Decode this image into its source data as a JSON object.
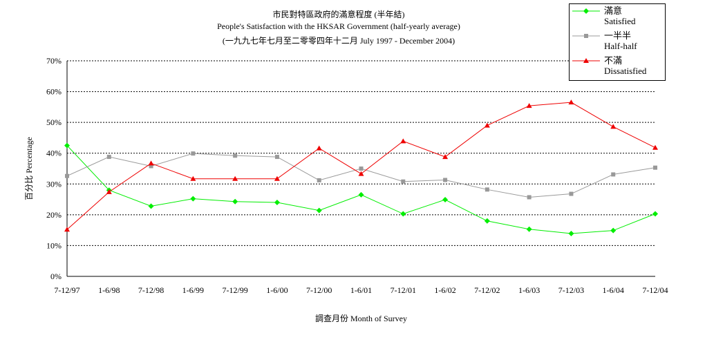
{
  "title": {
    "line1": "市民對特區政府的滿意程度 (半年結)",
    "line2": "People's Satisfaction with the HKSAR Government (half-yearly average)",
    "line3": "(一九九七年七月至二零零四年十二月 July 1997 - December 2004)"
  },
  "chart_data": {
    "type": "line",
    "categories": [
      "7-12/97",
      "1-6/98",
      "7-12/98",
      "1-6/99",
      "7-12/99",
      "1-6/00",
      "7-12/00",
      "1-6/01",
      "7-12/01",
      "1-6/02",
      "7-12/02",
      "1-6/03",
      "7-12/03",
      "1-6/04",
      "7-12/04"
    ],
    "series": [
      {
        "name_zh": "滿意",
        "name": "Satisfied",
        "color": "#00ee00",
        "marker": "diamond",
        "values": [
          42.5,
          28.0,
          22.8,
          25.2,
          24.3,
          24.0,
          21.4,
          26.5,
          20.3,
          24.9,
          18.0,
          15.3,
          13.9,
          14.9,
          20.3
        ]
      },
      {
        "name_zh": "一半半",
        "name": "Half-half",
        "color": "#999999",
        "marker": "square",
        "values": [
          32.6,
          38.8,
          35.8,
          39.9,
          39.2,
          38.8,
          31.2,
          35.0,
          30.8,
          31.3,
          28.2,
          25.7,
          26.8,
          33.1,
          35.3
        ]
      },
      {
        "name_zh": "不滿",
        "name": "Dissatisfied",
        "color": "#ee0000",
        "marker": "triangle",
        "values": [
          15.2,
          27.4,
          36.7,
          31.7,
          31.7,
          31.7,
          41.6,
          33.3,
          43.9,
          38.8,
          49.0,
          55.4,
          56.5,
          48.6,
          41.8
        ]
      }
    ],
    "ylim": [
      0,
      70
    ],
    "yticks": [
      0,
      10,
      20,
      30,
      40,
      50,
      60,
      70
    ],
    "ytick_labels": [
      "0%",
      "10%",
      "20%",
      "30%",
      "40%",
      "50%",
      "60%",
      "70%"
    ],
    "xlabel": "調查月份 Month of Survey",
    "ylabel": "百分比 Percentage",
    "grid": "horizontal dashed",
    "legend_position": "top-right"
  }
}
